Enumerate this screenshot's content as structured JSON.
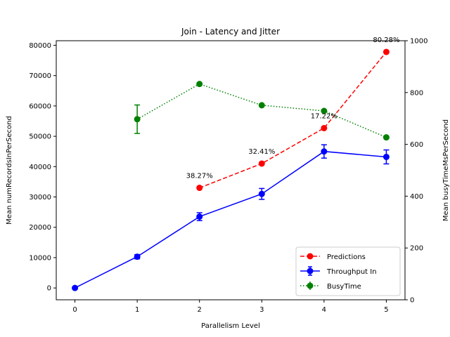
{
  "chart_data": {
    "type": "line",
    "title": "Join - Latency and Jitter",
    "xlabel": "Parallelism Level",
    "ylabel_left": "Mean numRecordsInPerSecond",
    "ylabel_right": "Mean busyTimeMsPerSecond",
    "xlim": [
      -0.3,
      5.3
    ],
    "ylim_left": [
      -3900,
      81500
    ],
    "ylim_right": [
      0,
      1000
    ],
    "x_ticks": [
      "0",
      "1",
      "2",
      "3",
      "4",
      "5"
    ],
    "y_left_ticks": [
      "0",
      "10000",
      "20000",
      "30000",
      "40000",
      "50000",
      "60000",
      "70000",
      "80000"
    ],
    "y_right_ticks": [
      "0",
      "200",
      "400",
      "600",
      "800",
      "1000"
    ],
    "legend_position": "lower right",
    "series": [
      {
        "name": "Predictions",
        "axis": "left",
        "color": "#ff0000",
        "style": "dashed",
        "marker": "circle",
        "x": [
          2,
          3,
          4,
          5
        ],
        "y": [
          33000,
          41000,
          52700,
          77800
        ]
      },
      {
        "name": "Throughput In",
        "axis": "left",
        "color": "#0000ff",
        "style": "solid",
        "marker": "circle",
        "x": [
          0,
          1,
          2,
          3,
          4,
          5
        ],
        "y": [
          0,
          10300,
          23500,
          31000,
          45000,
          43200
        ],
        "err": [
          0,
          700,
          1300,
          1800,
          2200,
          2300
        ]
      },
      {
        "name": "BusyTime",
        "axis": "right",
        "color": "#008000",
        "style": "dotted",
        "marker": "circle",
        "x": [
          1,
          2,
          3,
          4,
          5
        ],
        "y": [
          697,
          833,
          751,
          729,
          627
        ],
        "err": [
          55,
          0,
          0,
          0,
          0
        ]
      }
    ],
    "annotations": [
      {
        "text": "38.27%",
        "x": 2,
        "y": 33000
      },
      {
        "text": "32.41%",
        "x": 3,
        "y": 41000
      },
      {
        "text": "17.22%",
        "x": 4,
        "y": 52700
      },
      {
        "text": "80.28%",
        "x": 5,
        "y": 77800
      }
    ]
  }
}
